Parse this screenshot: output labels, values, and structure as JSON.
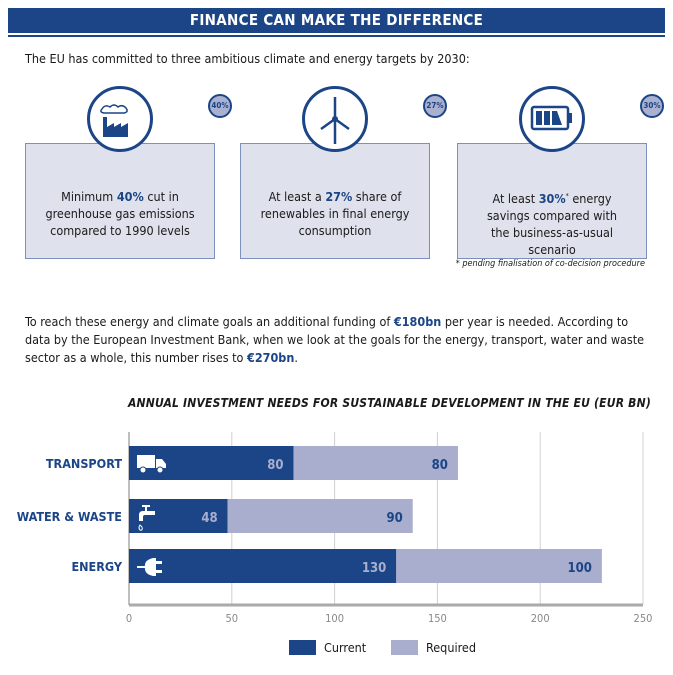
{
  "header": {
    "title": "FINANCE CAN MAKE THE DIFFERENCE"
  },
  "intro": "The EU has committed to three ambitious climate and energy targets by 2030:",
  "targets": [
    {
      "icon": "factory-icon",
      "badge": "40%",
      "pre": "Minimum ",
      "hl": "40%",
      "post": " cut in greenhouse gas emissions compared to 1990 levels"
    },
    {
      "icon": "wind-turbine-icon",
      "badge": "27%",
      "pre": "At least a ",
      "hl": "27%",
      "post": " share of renewables in final energy consumption"
    },
    {
      "icon": "battery-icon",
      "badge": "30%",
      "pre": "At least ",
      "hl": "30%",
      "sup": "*",
      "post": " energy savings compared with the business-as-usual scenario"
    }
  ],
  "footnote": "* pending finalisation of co-decision procedure",
  "paragraph": {
    "p1": "To reach these energy and climate goals an additional funding of ",
    "h1": "€180bn",
    "p2": " per year is needed. According to data by the European Investment Bank, when we look at the goals for the energy, transport, water and waste sector as a whole, this number rises to ",
    "h2": "€270bn",
    "p3": "."
  },
  "colors": {
    "current": "#1b4586",
    "required": "#a9aecf"
  },
  "chart_data": {
    "type": "bar",
    "stacked": true,
    "orientation": "horizontal",
    "title": "ANNUAL INVESTMENT NEEDS FOR SUSTAINABLE DEVELOPMENT IN THE EU (EUR BN)",
    "categories": [
      "TRANSPORT",
      "WATER & WASTE",
      "ENERGY"
    ],
    "category_icons": [
      "truck-icon",
      "tap-icon",
      "plug-icon"
    ],
    "series": [
      {
        "name": "Current",
        "values": [
          80,
          48,
          130
        ]
      },
      {
        "name": "Required",
        "values": [
          80,
          90,
          100
        ]
      }
    ],
    "xlim": [
      0,
      250
    ],
    "xticks": [
      "0",
      "50",
      "100",
      "150",
      "200",
      "250"
    ],
    "grid": true,
    "legend": "bottom"
  }
}
